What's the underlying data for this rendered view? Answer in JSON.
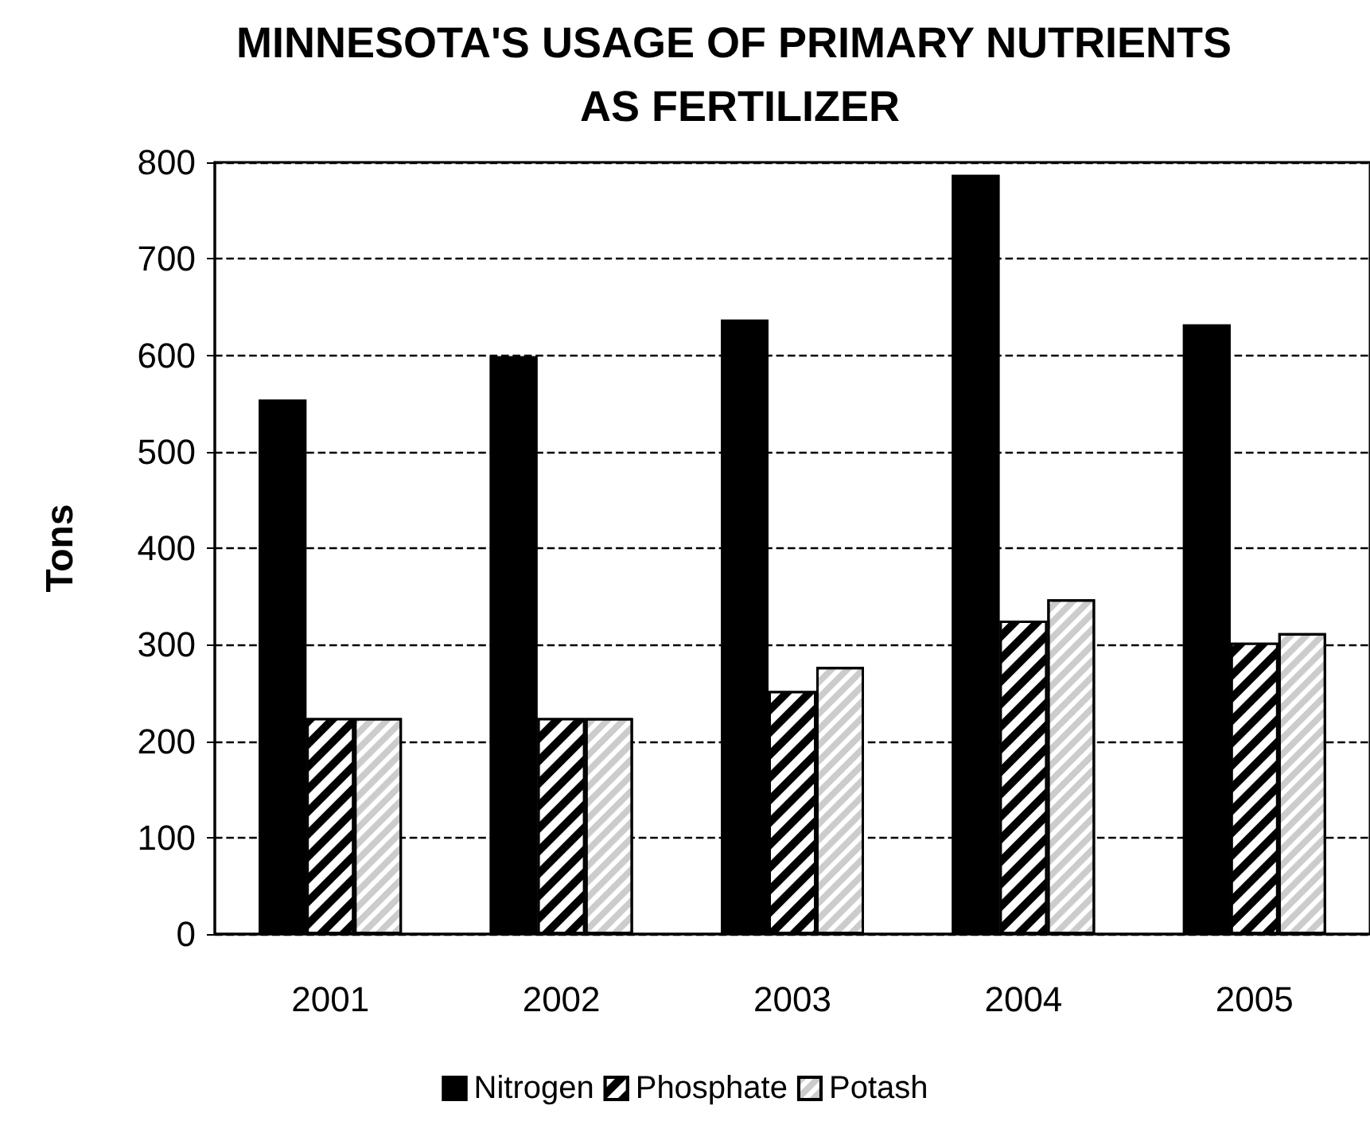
{
  "chart_data": {
    "type": "bar",
    "title": "MINNESOTA'S USAGE OF PRIMARY NUTRIENTS AS FERTILIZER",
    "ylabel": "Tons",
    "categories": [
      "2001",
      "2002",
      "2003",
      "2004",
      "2005"
    ],
    "series": [
      {
        "name": "Nitrogen",
        "color": "#000000",
        "values": [
          554,
          599,
          637,
          787,
          632
        ]
      },
      {
        "name": "Phosphate",
        "color": "#000000",
        "values": [
          224,
          224,
          252,
          325,
          302
        ]
      },
      {
        "name": "Potash",
        "color": "#ffffff",
        "values": [
          224,
          224,
          277,
          347,
          312
        ]
      }
    ],
    "ylim": [
      0,
      800
    ],
    "yticks": [
      0,
      100,
      200,
      300,
      400,
      500,
      600,
      700,
      800
    ],
    "grid": "y",
    "legend": "bottom"
  }
}
